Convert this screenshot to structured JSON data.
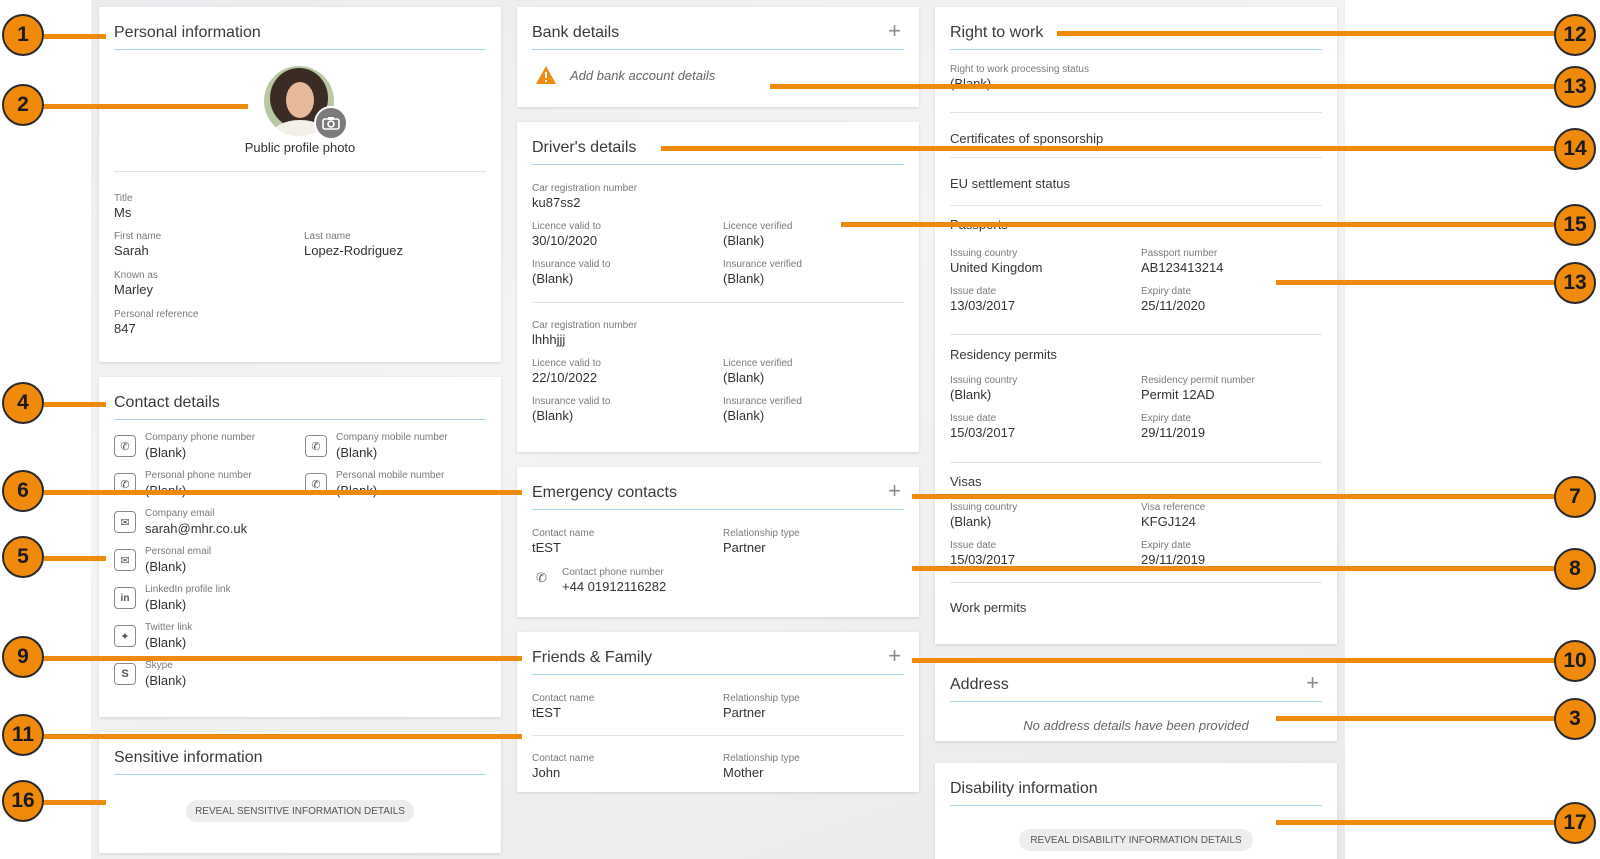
{
  "personal": {
    "title": "Personal information",
    "photo_label": "Public profile photo",
    "fields": [
      {
        "label": "Title",
        "value": "Ms"
      },
      {
        "label": "First name",
        "value": "Sarah"
      },
      {
        "label": "Last name",
        "value": "Lopez-Rodriguez"
      },
      {
        "label": "Known as",
        "value": "Marley"
      },
      {
        "label": "Personal reference",
        "value": "847"
      }
    ]
  },
  "contact": {
    "title": "Contact details",
    "items": [
      {
        "label": "Company phone number",
        "value": "(Blank)",
        "icon": "phone-icon"
      },
      {
        "label": "Company mobile number",
        "value": "(Blank)",
        "icon": "phone-icon"
      },
      {
        "label": "Personal phone number",
        "value": "(Blank)",
        "icon": "phone-icon"
      },
      {
        "label": "Personal mobile number",
        "value": "(Blank)",
        "icon": "phone-icon"
      },
      {
        "label": "Company email",
        "value": "sarah@mhr.co.uk",
        "icon": "mail-icon"
      },
      {
        "label": "Personal email",
        "value": "(Blank)",
        "icon": "mail-icon"
      },
      {
        "label": "LinkedIn profile link",
        "value": "(Blank)",
        "icon": "linkedin-icon"
      },
      {
        "label": "Twitter link",
        "value": "(Blank)",
        "icon": "twitter-icon"
      },
      {
        "label": "Skype",
        "value": "(Blank)",
        "icon": "skype-icon"
      }
    ]
  },
  "sensitive": {
    "title": "Sensitive information",
    "button": "REVEAL SENSITIVE INFORMATION DETAILS"
  },
  "bank": {
    "title": "Bank details",
    "add_text": "Add bank account details"
  },
  "drivers": {
    "title": "Driver's details",
    "entries": [
      {
        "car_label": "Car registration number",
        "car_value": "ku87ss2",
        "licence_label": "Licence valid to",
        "licence_value": "30/10/2020",
        "licence_verified_label": "Licence verified",
        "licence_verified_value": "(Blank)",
        "insurance_label": "Insurance valid to",
        "insurance_value": "(Blank)",
        "insurance_verified_label": "Insurance verified",
        "insurance_verified_value": "(Blank)"
      },
      {
        "car_label": "Car registration number",
        "car_value": "lhhhjjj",
        "licence_label": "Licence valid to",
        "licence_value": "22/10/2022",
        "licence_verified_label": "Licence verified",
        "licence_verified_value": "(Blank)",
        "insurance_label": "Insurance valid to",
        "insurance_value": "(Blank)",
        "insurance_verified_label": "Insurance verified",
        "insurance_verified_value": "(Blank)"
      }
    ]
  },
  "emergency": {
    "title": "Emergency contacts",
    "name_label": "Contact name",
    "name_value": "tEST",
    "rel_label": "Relationship type",
    "rel_value": "Partner",
    "phone_label": "Contact phone number",
    "phone_value": "+44 01912116282"
  },
  "friends": {
    "title": "Friends & Family",
    "entries": [
      {
        "name_label": "Contact name",
        "name_value": "tEST",
        "rel_label": "Relationship type",
        "rel_value": "Partner"
      },
      {
        "name_label": "Contact name",
        "name_value": "John",
        "rel_label": "Relationship type",
        "rel_value": "Mother"
      }
    ]
  },
  "rtw": {
    "title": "Right to work",
    "status_label": "Right to work processing status",
    "status_value": "(Blank)",
    "cos_label": "Certificates of sponsorship",
    "eu_label": "EU settlement status",
    "passports": {
      "heading": "Passports",
      "country_label": "Issuing country",
      "country_value": "United Kingdom",
      "number_label": "Passport number",
      "number_value": "AB123413214",
      "issue_label": "Issue date",
      "issue_value": "13/03/2017",
      "expiry_label": "Expiry date",
      "expiry_value": "25/11/2020"
    },
    "residency": {
      "heading": "Residency permits",
      "country_label": "Issuing country",
      "country_value": "(Blank)",
      "number_label": "Residency permit number",
      "number_value": "Permit 12AD",
      "issue_label": "Issue date",
      "issue_value": "15/03/2017",
      "expiry_label": "Expiry date",
      "expiry_value": "29/11/2019"
    },
    "visas": {
      "heading": "Visas",
      "country_label": "Issuing country",
      "country_value": "(Blank)",
      "ref_label": "Visa reference",
      "ref_value": "KFGJ124",
      "issue_label": "Issue date",
      "issue_value": "15/03/2017",
      "expiry_label": "Expiry date",
      "expiry_value": "29/11/2019"
    },
    "work_permits_label": "Work permits"
  },
  "address": {
    "title": "Address",
    "empty_text": "No address details have been provided"
  },
  "disability": {
    "title": "Disability information",
    "button": "REVEAL DISABILITY INFORMATION DETAILS"
  },
  "callouts": [
    "1",
    "2",
    "3",
    "4",
    "5",
    "6",
    "7",
    "8",
    "9",
    "10",
    "11",
    "12",
    "13",
    "14",
    "15",
    "13",
    "16",
    "17"
  ],
  "colors": {
    "accent": "#f08a0c",
    "rule": "#a8d4ec",
    "warning": "#f08a0c"
  }
}
